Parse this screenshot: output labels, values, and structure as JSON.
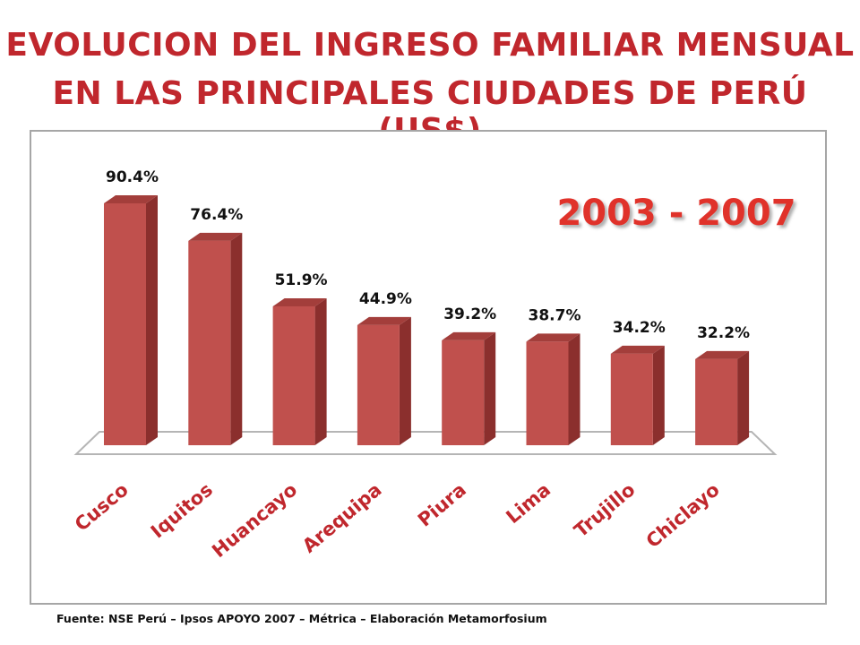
{
  "header": {
    "title_line1": "EVOLUCION DEL INGRESO FAMILIAR MENSUAL",
    "title_line2": "EN LAS PRINCIPALES CIUDADES DE PERÚ (US$)"
  },
  "footer": {
    "source": "Fuente: NSE Perú – Ipsos APOYO 2007 – Métrica – Elaboración Metamorfosium"
  },
  "colors": {
    "title": "#c0272d",
    "bar_front": "#c0504d",
    "bar_side": "#8b2f2d",
    "bar_top": "#a33e3b",
    "period_label": "#e0312b",
    "category_label": "#c0272d"
  },
  "chart_data": {
    "type": "bar",
    "style": "3d-column",
    "period": "2003 - 2007",
    "categories": [
      "Cusco",
      "Iquitos",
      "Huancayo",
      "Arequipa",
      "Piura",
      "Lima",
      "Trujillo",
      "Chiclayo"
    ],
    "values": [
      90.4,
      76.4,
      51.9,
      44.9,
      39.2,
      38.7,
      34.2,
      32.2
    ],
    "data_labels": [
      "90.4%",
      "76.4%",
      "51.9%",
      "44.9%",
      "39.2%",
      "38.7%",
      "34.2%",
      "32.2%"
    ],
    "unit": "%",
    "ylim": [
      0,
      100
    ],
    "grid": false,
    "legend": "none"
  }
}
